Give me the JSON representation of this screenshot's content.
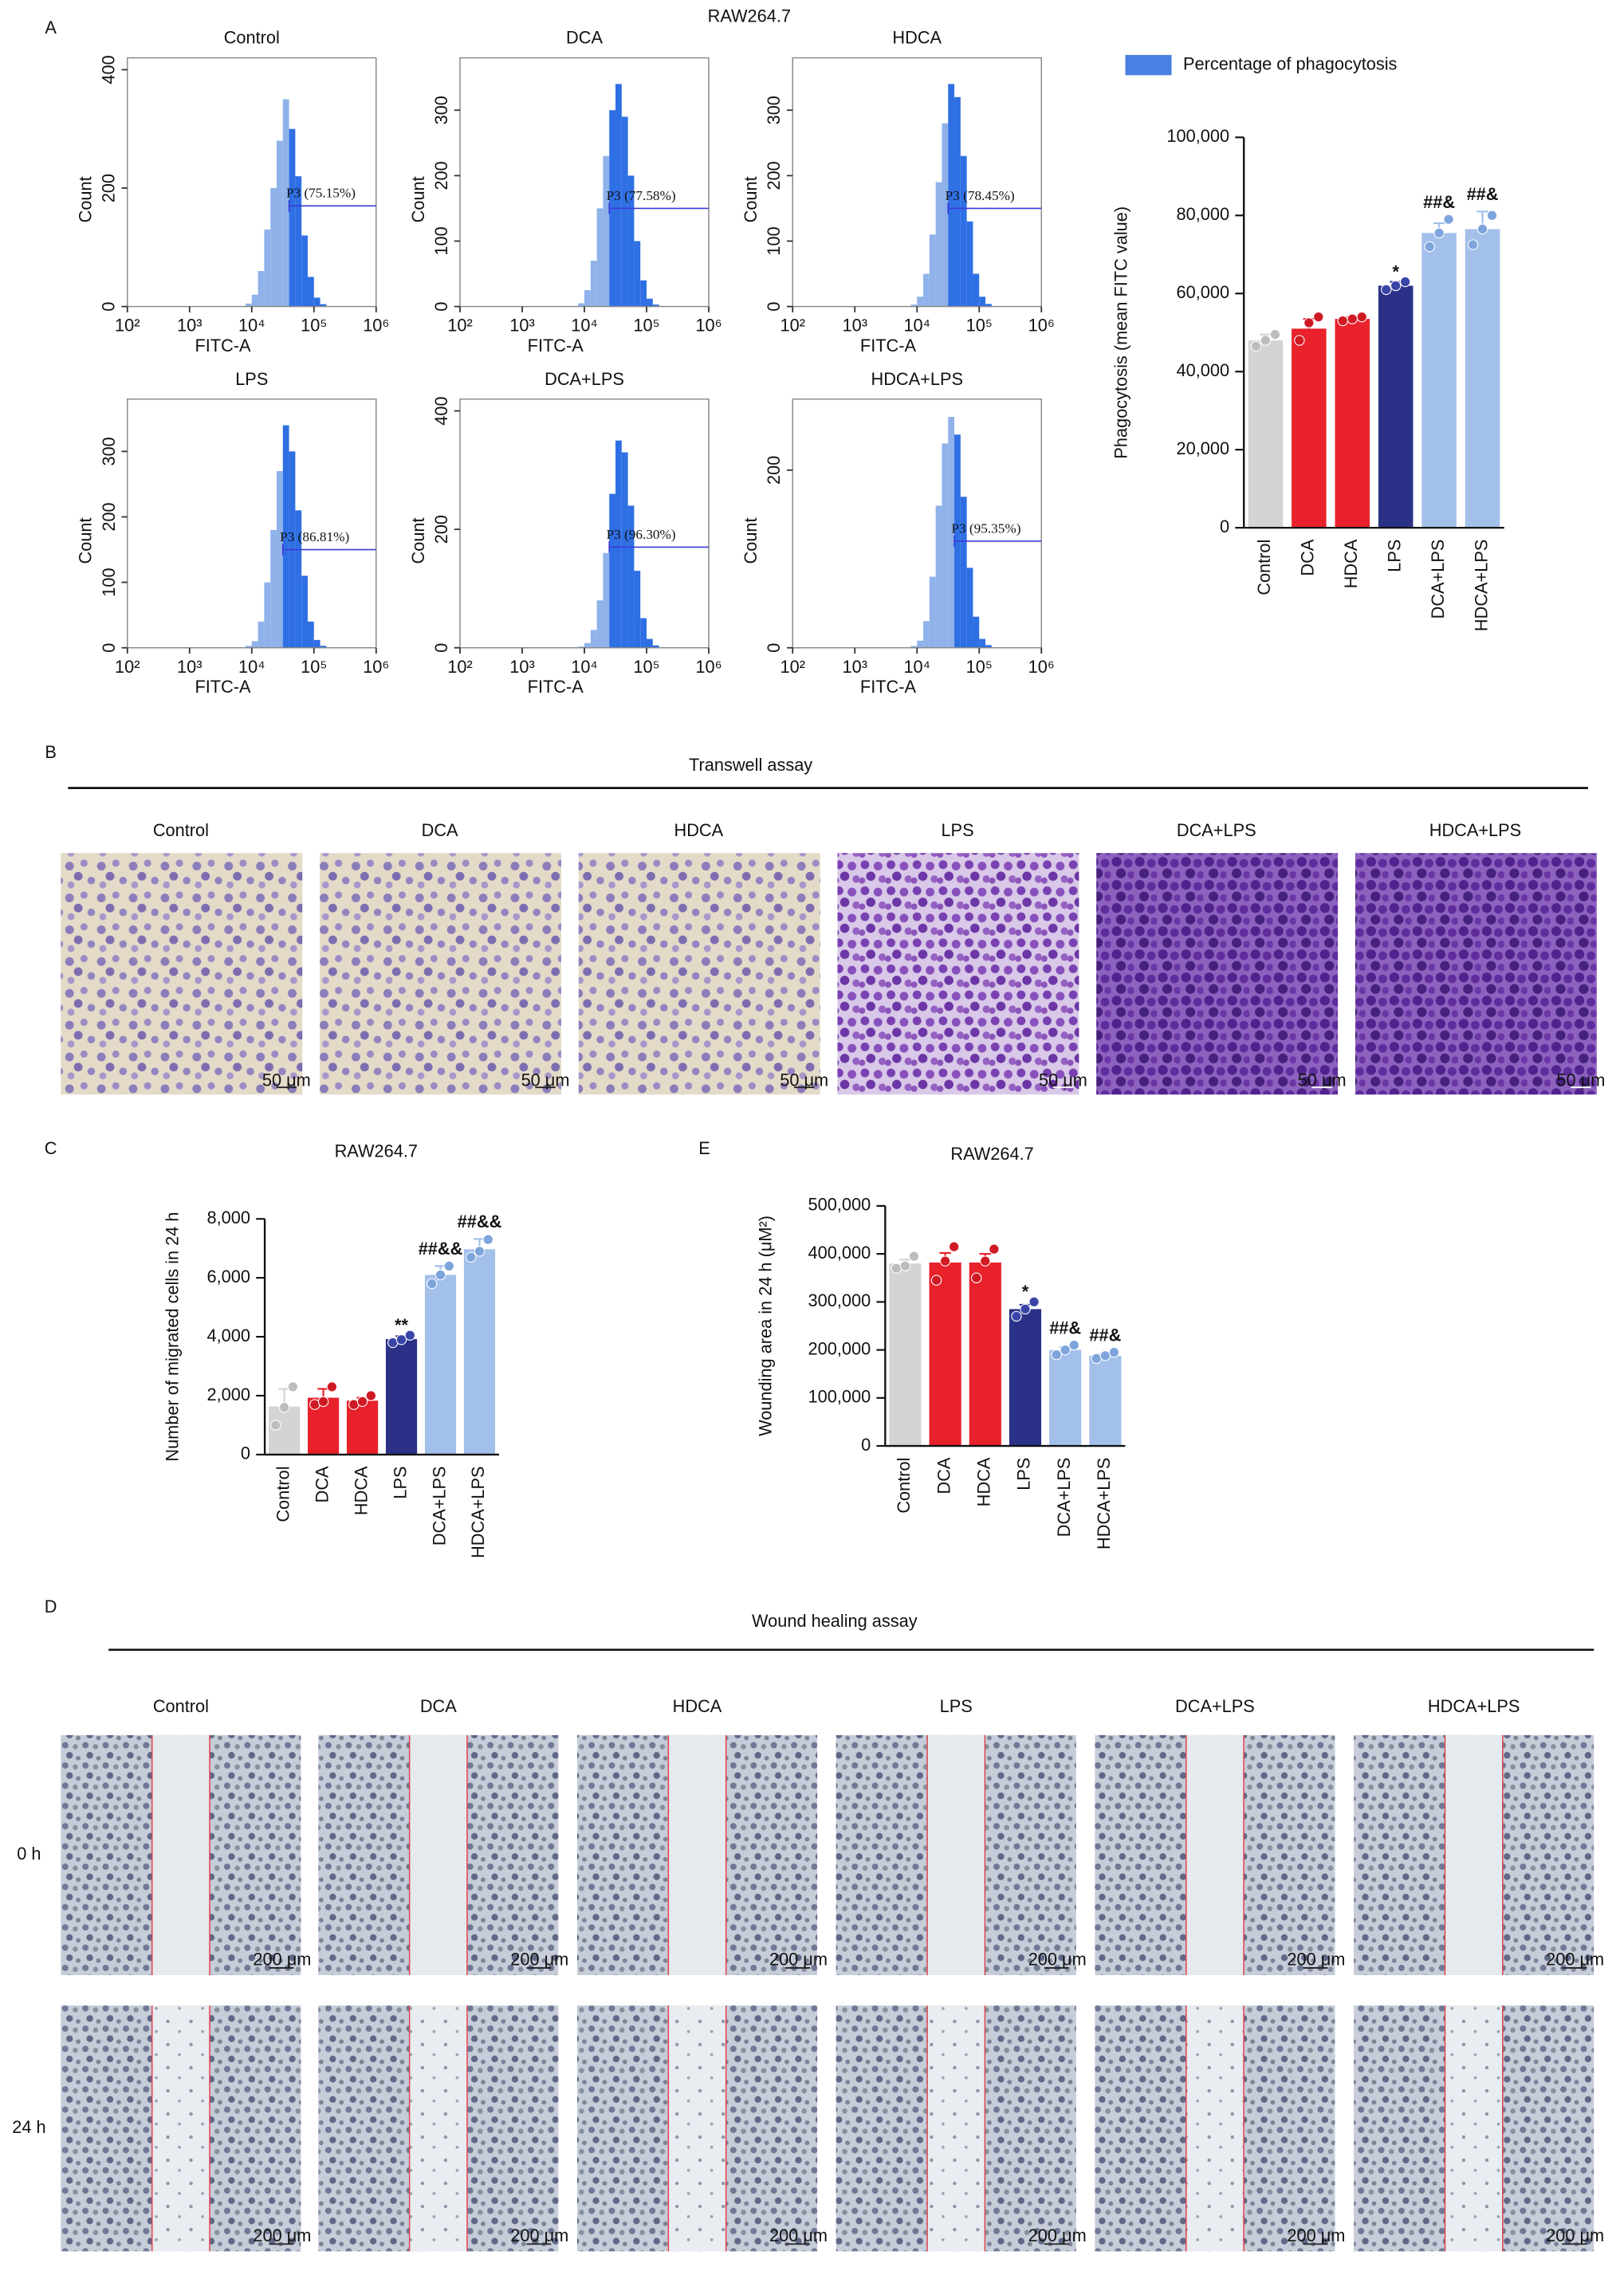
{
  "panel_labels": [
    "A",
    "B",
    "C",
    "D",
    "E"
  ],
  "flow_title": "RAW264.7",
  "chart_data": [
    {
      "type": "histogram",
      "title": "Control",
      "x_label": "FITC-A",
      "y_label": "Count",
      "xscale": "log",
      "xlim": [
        100,
        1000000
      ],
      "xticks": [
        {
          "value": 100,
          "label": "10²"
        },
        {
          "value": 1000,
          "label": "10³"
        },
        {
          "value": 10000,
          "label": "10⁴"
        },
        {
          "value": 100000,
          "label": "10⁵"
        },
        {
          "value": 1000000,
          "label": "10⁶"
        }
      ],
      "ylim": [
        0,
        420
      ],
      "yticks": [
        0,
        200,
        400
      ],
      "bins": [
        7943,
        10000,
        12589,
        15849,
        19953,
        25119,
        31623,
        39811,
        50119,
        63096,
        79433,
        100000,
        125893,
        158489
      ],
      "counts": [
        5,
        20,
        60,
        130,
        200,
        280,
        350,
        300,
        220,
        120,
        50,
        15,
        4
      ],
      "color": "#2f6fe4",
      "ungated_color": "#8fb2ea",
      "gate": {
        "label": "P3 (75.15%)",
        "x": [
          39811,
          1000000
        ],
        "y": 170
      }
    },
    {
      "type": "histogram",
      "title": "DCA",
      "x_label": "FITC-A",
      "y_label": "Count",
      "xscale": "log",
      "xlim": [
        100,
        1000000
      ],
      "xticks": [
        {
          "value": 100,
          "label": "10²"
        },
        {
          "value": 1000,
          "label": "10³"
        },
        {
          "value": 10000,
          "label": "10⁴"
        },
        {
          "value": 100000,
          "label": "10⁵"
        },
        {
          "value": 1000000,
          "label": "10⁶"
        }
      ],
      "ylim": [
        0,
        380
      ],
      "yticks": [
        0,
        100,
        200,
        300
      ],
      "bins": [
        7943,
        10000,
        12589,
        15849,
        19953,
        25119,
        31623,
        39811,
        50119,
        63096,
        79433,
        100000,
        125893,
        158489
      ],
      "counts": [
        5,
        25,
        70,
        150,
        230,
        300,
        340,
        290,
        200,
        100,
        40,
        12,
        3
      ],
      "color": "#2f6fe4",
      "ungated_color": "#8fb2ea",
      "gate": {
        "label": "P3 (77.58%)",
        "x": [
          25119,
          1000000
        ],
        "y": 150
      }
    },
    {
      "type": "histogram",
      "title": "HDCA",
      "x_label": "FITC-A",
      "y_label": "Count",
      "xscale": "log",
      "xlim": [
        100,
        1000000
      ],
      "xticks": [
        {
          "value": 100,
          "label": "10²"
        },
        {
          "value": 1000,
          "label": "10³"
        },
        {
          "value": 10000,
          "label": "10⁴"
        },
        {
          "value": 100000,
          "label": "10⁵"
        },
        {
          "value": 1000000,
          "label": "10⁶"
        }
      ],
      "ylim": [
        0,
        380
      ],
      "yticks": [
        0,
        100,
        200,
        300
      ],
      "bins": [
        7943,
        10000,
        12589,
        15849,
        19953,
        25119,
        31623,
        39811,
        50119,
        63096,
        79433,
        100000,
        125893,
        158489
      ],
      "counts": [
        3,
        15,
        50,
        110,
        190,
        280,
        340,
        320,
        230,
        130,
        50,
        15,
        4
      ],
      "color": "#2f6fe4",
      "ungated_color": "#8fb2ea",
      "gate": {
        "label": "P3 (78.45%)",
        "x": [
          31623,
          1000000
        ],
        "y": 150
      }
    },
    {
      "type": "histogram",
      "title": "LPS",
      "x_label": "FITC-A",
      "y_label": "Count",
      "xscale": "log",
      "xlim": [
        100,
        1000000
      ],
      "xticks": [
        {
          "value": 100,
          "label": "10²"
        },
        {
          "value": 1000,
          "label": "10³"
        },
        {
          "value": 10000,
          "label": "10⁴"
        },
        {
          "value": 100000,
          "label": "10⁵"
        },
        {
          "value": 1000000,
          "label": "10⁶"
        }
      ],
      "ylim": [
        0,
        380
      ],
      "yticks": [
        0,
        100,
        200,
        300
      ],
      "bins": [
        7943,
        10000,
        12589,
        15849,
        19953,
        25119,
        31623,
        39811,
        50119,
        63096,
        79433,
        100000,
        125893,
        158489
      ],
      "counts": [
        3,
        10,
        40,
        100,
        180,
        270,
        340,
        300,
        210,
        110,
        40,
        12,
        3
      ],
      "color": "#2f6fe4",
      "ungated_color": "#8fb2ea",
      "gate": {
        "label": "P3 (86.81%)",
        "x": [
          31623,
          1000000
        ],
        "y": 150
      }
    },
    {
      "type": "histogram",
      "title": "DCA+LPS",
      "x_label": "FITC-A",
      "y_label": "Count",
      "xscale": "log",
      "xlim": [
        100,
        1000000
      ],
      "xticks": [
        {
          "value": 100,
          "label": "10²"
        },
        {
          "value": 1000,
          "label": "10³"
        },
        {
          "value": 10000,
          "label": "10⁴"
        },
        {
          "value": 100000,
          "label": "10⁵"
        },
        {
          "value": 1000000,
          "label": "10⁶"
        }
      ],
      "ylim": [
        0,
        420
      ],
      "yticks": [
        0,
        200,
        400
      ],
      "bins": [
        7943,
        10000,
        12589,
        15849,
        19953,
        25119,
        31623,
        39811,
        50119,
        63096,
        79433,
        100000,
        125893,
        158489
      ],
      "counts": [
        2,
        8,
        30,
        80,
        160,
        260,
        350,
        330,
        240,
        130,
        50,
        15,
        4
      ],
      "color": "#2f6fe4",
      "ungated_color": "#8fb2ea",
      "gate": {
        "label": "P3 (96.30%)",
        "x": [
          25119,
          1000000
        ],
        "y": 170
      }
    },
    {
      "type": "histogram",
      "title": "HDCA+LPS",
      "x_label": "FITC-A",
      "y_label": "Count",
      "xscale": "log",
      "xlim": [
        100,
        1000000
      ],
      "xticks": [
        {
          "value": 100,
          "label": "10²"
        },
        {
          "value": 1000,
          "label": "10³"
        },
        {
          "value": 10000,
          "label": "10⁴"
        },
        {
          "value": 100000,
          "label": "10⁵"
        },
        {
          "value": 1000000,
          "label": "10⁶"
        }
      ],
      "ylim": [
        0,
        280
      ],
      "yticks": [
        0,
        200
      ],
      "bins": [
        7943,
        10000,
        12589,
        15849,
        19953,
        25119,
        31623,
        39811,
        50119,
        63096,
        79433,
        100000,
        125893,
        158489
      ],
      "counts": [
        2,
        8,
        30,
        80,
        160,
        230,
        260,
        240,
        170,
        90,
        35,
        10,
        3
      ],
      "color": "#2f6fe4",
      "ungated_color": "#8fb2ea",
      "gate": {
        "label": "P3 (95.35%)",
        "x": [
          39811,
          1000000
        ],
        "y": 120
      }
    },
    {
      "type": "bar",
      "y_label": "Phagocytosis (mean FITC value)",
      "legend": {
        "name": "Percentage of phagocytosis",
        "color": "#4a7fe3"
      },
      "categories": [
        "Control",
        "DCA",
        "HDCA",
        "LPS",
        "DCA+LPS",
        "HDCA+LPS"
      ],
      "values": [
        48000,
        51000,
        53500,
        62000,
        75500,
        76500
      ],
      "errors": [
        1500,
        2500,
        500,
        1000,
        2500,
        4500
      ],
      "points": [
        [
          46500,
          48000,
          49500
        ],
        [
          48000,
          52500,
          54000
        ],
        [
          53000,
          53500,
          54000
        ],
        [
          61000,
          62000,
          63000
        ],
        [
          72000,
          75500,
          79000
        ],
        [
          72500,
          76500,
          80000
        ]
      ],
      "colors": [
        "#d4d4d4",
        "#e8212b",
        "#e8212b",
        "#2a3187",
        "#a3c0ea",
        "#a3c0ea"
      ],
      "point_colors": [
        "#bdbdbd",
        "#d01a23",
        "#d01a23",
        "#3a45a8",
        "#7ea4dc",
        "#7ea4dc"
      ],
      "annotations": [
        null,
        null,
        null,
        "*",
        "##&",
        "##&"
      ],
      "ylim": [
        0,
        100000
      ],
      "yticks": [
        0,
        {
          "value": 20000,
          "label": "20,000"
        },
        {
          "value": 40000,
          "label": "40,000"
        },
        {
          "value": 60000,
          "label": "60,000"
        },
        {
          "value": 80000,
          "label": "80,000"
        },
        {
          "value": 100000,
          "label": "100,000"
        }
      ]
    },
    {
      "type": "bar",
      "title": "RAW264.7",
      "y_label": "Number of migrated cells in 24 h",
      "categories": [
        "Control",
        "DCA",
        "HDCA",
        "LPS",
        "DCA+LPS",
        "HDCA+LPS"
      ],
      "values": [
        1630,
        1930,
        1830,
        3920,
        6100,
        6970
      ],
      "errors": [
        600,
        300,
        100,
        100,
        300,
        350
      ],
      "points": [
        [
          1000,
          1600,
          2300
        ],
        [
          1700,
          1800,
          2300
        ],
        [
          1700,
          1800,
          2000
        ],
        [
          3800,
          3900,
          4050
        ],
        [
          5800,
          6100,
          6400
        ],
        [
          6700,
          6900,
          7300
        ]
      ],
      "colors": [
        "#d4d4d4",
        "#e8212b",
        "#e8212b",
        "#2a3187",
        "#a3c0ea",
        "#a3c0ea"
      ],
      "point_colors": [
        "#bdbdbd",
        "#d01a23",
        "#d01a23",
        "#3a45a8",
        "#7ea4dc",
        "#7ea4dc"
      ],
      "annotations": [
        null,
        null,
        null,
        "**",
        "##&&",
        "##&&"
      ],
      "ylim": [
        0,
        8000
      ],
      "yticks": [
        0,
        {
          "value": 2000,
          "label": "2,000"
        },
        {
          "value": 4000,
          "label": "4,000"
        },
        {
          "value": 6000,
          "label": "6,000"
        },
        {
          "value": 8000,
          "label": "8,000"
        }
      ]
    },
    {
      "type": "bar",
      "title": "RAW264.7",
      "y_label": "Wounding area in 24 h (μM²)",
      "categories": [
        "Control",
        "DCA",
        "HDCA",
        "LPS",
        "DCA+LPS",
        "HDCA+LPS"
      ],
      "values": [
        380000,
        382000,
        382000,
        285000,
        200000,
        188000
      ],
      "errors": [
        8000,
        20000,
        18000,
        9000,
        6000,
        4000
      ],
      "points": [
        [
          370000,
          375000,
          395000
        ],
        [
          345000,
          385000,
          415000
        ],
        [
          350000,
          385000,
          410000
        ],
        [
          270000,
          285000,
          300000
        ],
        [
          190000,
          200000,
          210000
        ],
        [
          182000,
          188000,
          195000
        ]
      ],
      "colors": [
        "#d4d4d4",
        "#e8212b",
        "#e8212b",
        "#2a3187",
        "#a3c0ea",
        "#a3c0ea"
      ],
      "point_colors": [
        "#bdbdbd",
        "#d01a23",
        "#d01a23",
        "#3a45a8",
        "#7ea4dc",
        "#7ea4dc"
      ],
      "annotations": [
        null,
        null,
        null,
        "*",
        "##&",
        "##&"
      ],
      "ylim": [
        0,
        500000
      ],
      "yticks": [
        0,
        {
          "value": 100000,
          "label": "100,000"
        },
        {
          "value": 200000,
          "label": "200,000"
        },
        {
          "value": 300000,
          "label": "300,000"
        },
        {
          "value": 400000,
          "label": "400,000"
        },
        {
          "value": 500000,
          "label": "500,000"
        }
      ]
    }
  ],
  "transwell": {
    "title": "Transwell assay",
    "groups": [
      "Control",
      "DCA",
      "HDCA",
      "LPS",
      "DCA+LPS",
      "HDCA+LPS"
    ],
    "scale_bar": "50 μm"
  },
  "wound": {
    "title": "Wound healing assay",
    "groups": [
      "Control",
      "DCA",
      "HDCA",
      "LPS",
      "DCA+LPS",
      "HDCA+LPS"
    ],
    "rows": [
      "0 h",
      "24 h"
    ],
    "scale_bar": "200 μm"
  }
}
